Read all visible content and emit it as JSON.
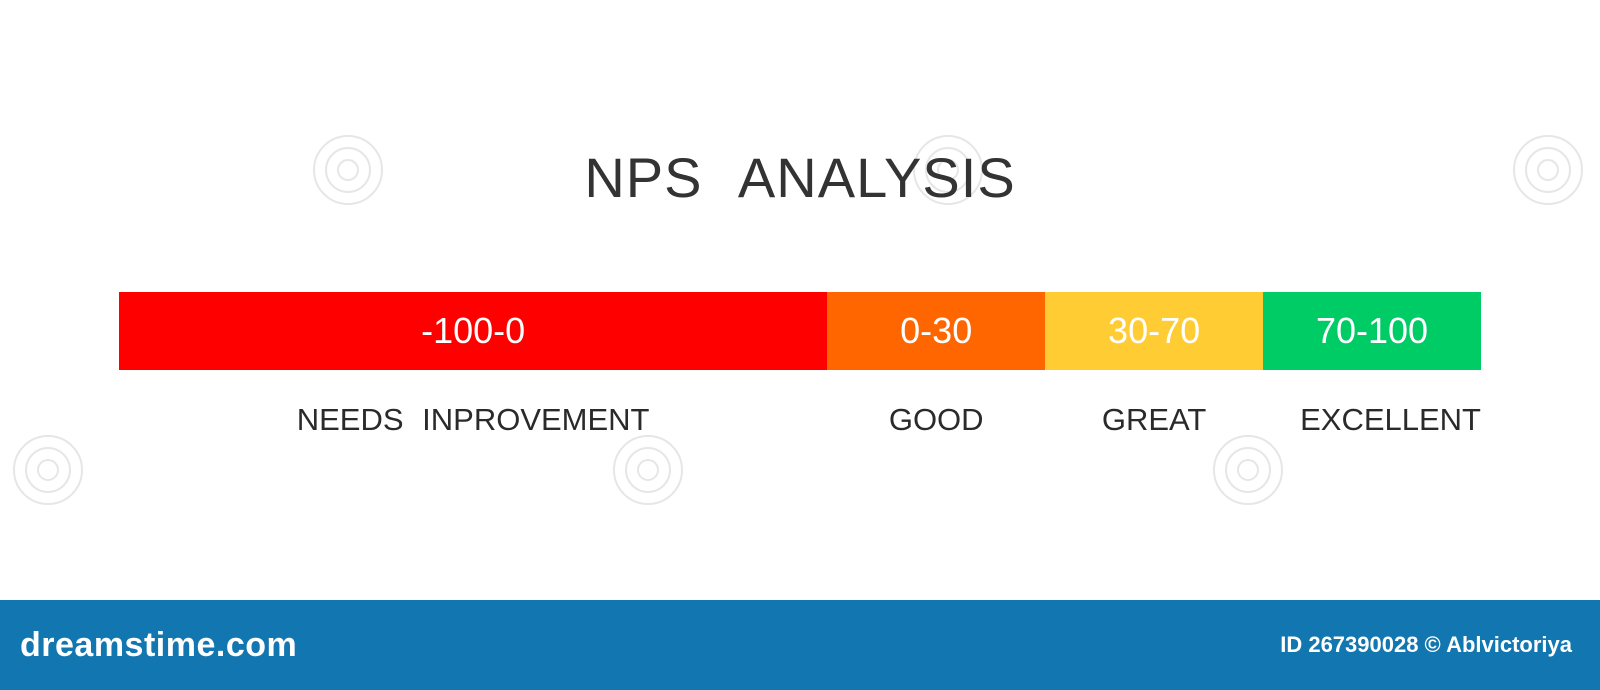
{
  "title": "NPS   ANALYSIS",
  "colors": {
    "needs_improvement": "#ff0000",
    "good": "#ff6600",
    "great": "#ffcc33",
    "excellent": "#00cc66",
    "footer": "#1277b0"
  },
  "scale": {
    "min": -100,
    "max": 100,
    "segments": [
      {
        "range": "-100-0",
        "label": "NEEDS  INPROVEMENT",
        "from": -100,
        "to": 0,
        "color": "#ff0000"
      },
      {
        "range": "0-30",
        "label": "GOOD",
        "from": 0,
        "to": 30,
        "color": "#ff6600"
      },
      {
        "range": "30-70",
        "label": "GREAT",
        "from": 30,
        "to": 70,
        "color": "#ffcc33"
      },
      {
        "range": "70-100",
        "label": "EXCELLENT",
        "from": 70,
        "to": 100,
        "color": "#00cc66"
      }
    ]
  },
  "footer": {
    "logo": "dreamstime.com",
    "credit": "ID 267390028 © Ablvictoriya"
  }
}
